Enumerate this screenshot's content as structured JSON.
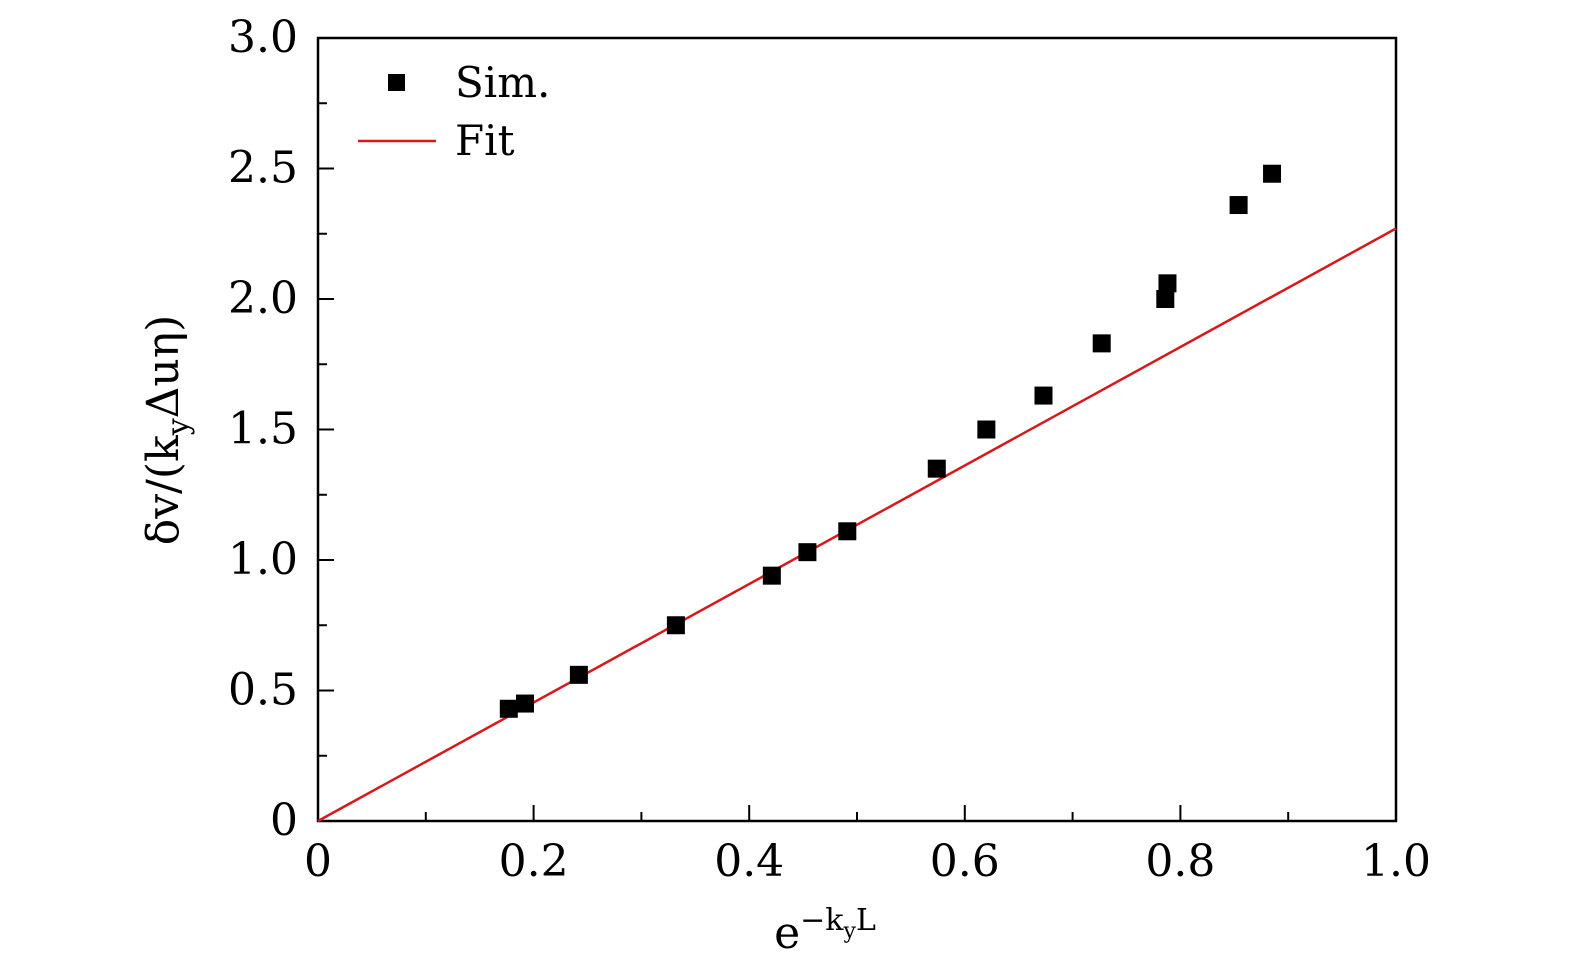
{
  "chart_data": {
    "type": "scatter",
    "title": "",
    "xlabel": "e",
    "xlabel_superscript": "−k",
    "xlabel_superscript_sub": "y",
    "xlabel_superscript_tail": "L",
    "ylabel": "δv/(k",
    "ylabel_sub": "y",
    "ylabel_tail": "Δuη)",
    "xlim": [
      0,
      1.0
    ],
    "ylim": [
      0,
      3.0
    ],
    "x_ticks": [
      0,
      0.2,
      0.4,
      0.6,
      0.8,
      1.0
    ],
    "x_tick_labels": [
      "0",
      "0.2",
      "0.4",
      "0.6",
      "0.8",
      "1.0"
    ],
    "y_ticks": [
      0,
      0.5,
      1.0,
      1.5,
      2.0,
      2.5,
      3.0
    ],
    "y_tick_labels": [
      "0",
      "0.5",
      "1.0",
      "1.5",
      "2.0",
      "2.5",
      "3.0"
    ],
    "grid": false,
    "legend_position": "top-left",
    "series": [
      {
        "name": "Sim.",
        "kind": "scatter",
        "marker": "square",
        "color": "#000000",
        "x": [
          0.177,
          0.192,
          0.242,
          0.332,
          0.421,
          0.454,
          0.491,
          0.574,
          0.62,
          0.673,
          0.727,
          0.786,
          0.788,
          0.854,
          0.885
        ],
        "y": [
          0.43,
          0.45,
          0.56,
          0.75,
          0.94,
          1.03,
          1.11,
          1.35,
          1.5,
          1.63,
          1.83,
          2.0,
          2.06,
          2.36,
          2.48
        ]
      },
      {
        "name": "Fit",
        "kind": "line",
        "color": "#d7191c",
        "x": [
          0,
          1.0
        ],
        "y": [
          0,
          2.27
        ]
      }
    ]
  }
}
